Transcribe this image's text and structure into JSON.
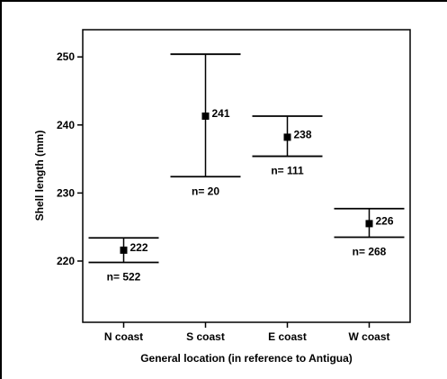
{
  "chart_data": {
    "type": "errorbar",
    "xlabel": "General location (in reference to Antigua)",
    "ylabel": "Shell length (mm)",
    "ylim": [
      211,
      254
    ],
    "yticks": [
      220,
      230,
      240,
      250
    ],
    "grid": false,
    "categories": [
      "N coast",
      "S coast",
      "E coast",
      "W coast"
    ],
    "points": [
      {
        "category": "N coast",
        "mean": 221.6,
        "low": 219.8,
        "high": 223.4,
        "mean_label": "222",
        "n_label": "n= 522"
      },
      {
        "category": "S coast",
        "mean": 241.3,
        "low": 232.4,
        "high": 250.4,
        "mean_label": "241",
        "n_label": "n= 20"
      },
      {
        "category": "E coast",
        "mean": 238.2,
        "low": 235.4,
        "high": 241.3,
        "mean_label": "238",
        "n_label": "n= 111"
      },
      {
        "category": "W coast",
        "mean": 225.5,
        "low": 223.5,
        "high": 227.7,
        "mean_label": "226",
        "n_label": "n= 268"
      }
    ]
  }
}
